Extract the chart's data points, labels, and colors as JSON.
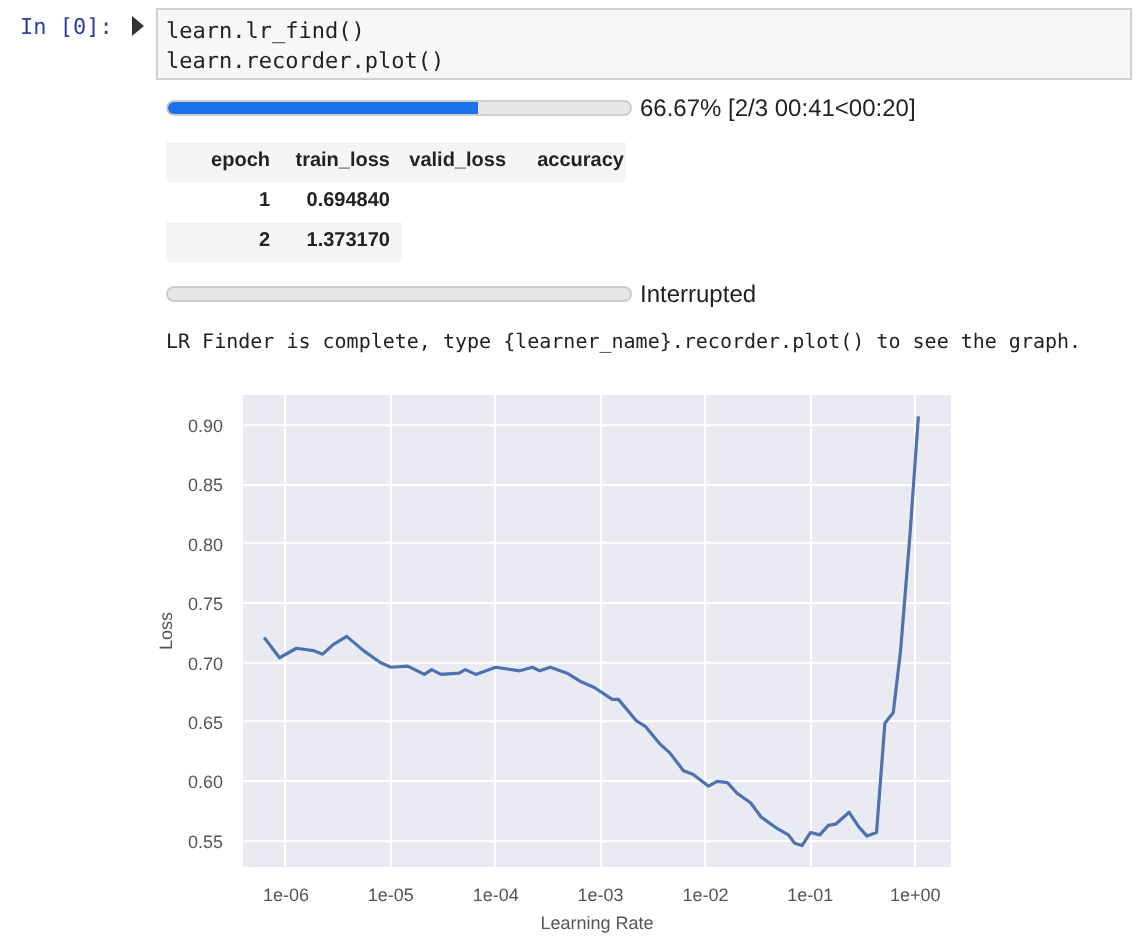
{
  "chart_data": {
    "type": "line",
    "xlabel": "Learning Rate",
    "ylabel": "Loss",
    "annotations": [
      "In [0]:",
      "learn.lr_find()",
      "learn.recorder.plot()",
      "66.67% [2/3 00:41<00:20]",
      "epoch",
      "train_loss",
      "valid_loss",
      "accuracy",
      "1",
      "0.694840",
      "2",
      "1.373170",
      "Interrupted",
      "LR Finder is complete, type {learner_name}.recorder.plot() to see the graph."
    ],
    "x": [
      6.2e-07,
      8.7e-07,
      1.26e-06,
      1.82e-06,
      2.24e-06,
      2.82e-06,
      3.8e-06,
      5.5e-06,
      7.94e-06,
      1e-05,
      1.45e-05,
      2.09e-05,
      2.45e-05,
      3.02e-05,
      4.47e-05,
      5.13e-05,
      6.46e-05,
      0.0001,
      0.00017,
      0.000224,
      0.000263,
      0.000331,
      0.000479,
      0.000646,
      0.000871,
      0.00129,
      0.00148,
      0.00219,
      0.00269,
      0.00363,
      0.00457,
      0.00617,
      0.00759,
      0.0107,
      0.0129,
      0.0162,
      0.02,
      0.0269,
      0.0339,
      0.049,
      0.0617,
      0.0708,
      0.0832,
      0.1,
      0.123,
      0.148,
      0.174,
      0.234,
      0.288,
      0.347,
      0.427,
      0.513,
      0.617,
      0.724,
      0.891,
      1.07
    ],
    "series": [
      {
        "color": "#4c72b0",
        "values": [
          0.721,
          0.704,
          0.712,
          0.71,
          0.707,
          0.715,
          0.722,
          0.71,
          0.7,
          0.696,
          0.697,
          0.69,
          0.694,
          0.69,
          0.691,
          0.694,
          0.69,
          0.696,
          0.693,
          0.696,
          0.693,
          0.696,
          0.691,
          0.684,
          0.679,
          0.669,
          0.669,
          0.651,
          0.646,
          0.632,
          0.624,
          0.609,
          0.606,
          0.596,
          0.6,
          0.599,
          0.59,
          0.582,
          0.57,
          0.56,
          0.555,
          0.548,
          0.546,
          0.557,
          0.555,
          0.563,
          0.564,
          0.574,
          0.562,
          0.554,
          0.557,
          0.649,
          0.658,
          0.71,
          0.808,
          0.907
        ]
      }
    ],
    "log": "x",
    "grid": true,
    "xlim": [
      3.9e-07,
      2.19
    ],
    "ylim": [
      0.528,
      0.925
    ],
    "xticks": [
      {
        "value": 1e-06,
        "label": "1e-06"
      },
      {
        "value": 1e-05,
        "label": "1e-05"
      },
      {
        "value": 0.0001,
        "label": "1e-04"
      },
      {
        "value": 0.001,
        "label": "1e-03"
      },
      {
        "value": 0.01,
        "label": "1e-02"
      },
      {
        "value": 0.1,
        "label": "1e-01"
      },
      {
        "value": 1,
        "label": "1e+00"
      }
    ],
    "yticks": [
      {
        "value": 0.55,
        "label": "0.55"
      },
      {
        "value": 0.6,
        "label": "0.60"
      },
      {
        "value": 0.65,
        "label": "0.65"
      },
      {
        "value": 0.7,
        "label": "0.70"
      },
      {
        "value": 0.75,
        "label": "0.75"
      },
      {
        "value": 0.8,
        "label": "0.80"
      },
      {
        "value": 0.85,
        "label": "0.85"
      },
      {
        "value": 0.9,
        "label": "0.90"
      }
    ]
  }
}
